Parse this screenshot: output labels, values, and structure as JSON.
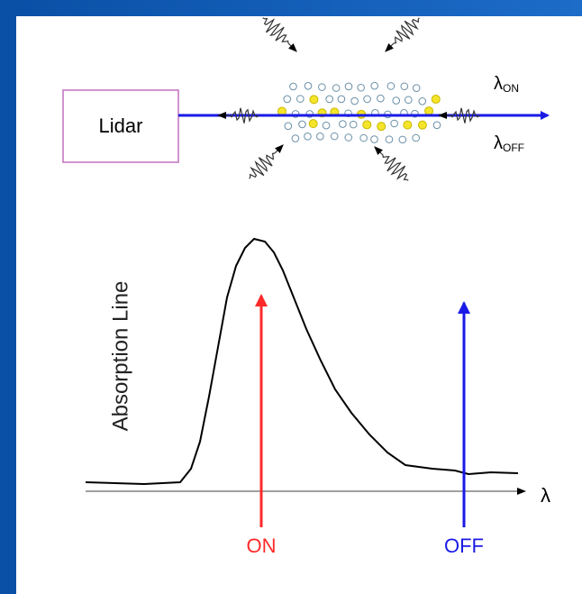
{
  "lidar": "Lidar",
  "beam_labels": [
    {
      "symbol": "λ",
      "subscript": "ON"
    },
    {
      "symbol": "λ",
      "subscript": "OFF"
    }
  ],
  "y_axis_label": "Absorption Line",
  "x_axis_label": "λ",
  "markers": [
    "ON",
    "OFF"
  ]
}
